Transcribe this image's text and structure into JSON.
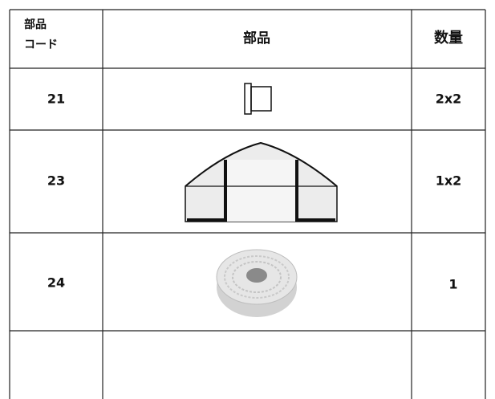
{
  "table": {
    "header": [
      [
        "部品",
        "コード"
      ],
      "部品",
      "数量"
    ],
    "rows": [
      [
        "21",
        "2x2"
      ],
      [
        "23",
        "1x2"
      ],
      [
        "24",
        "1"
      ]
    ]
  }
}
